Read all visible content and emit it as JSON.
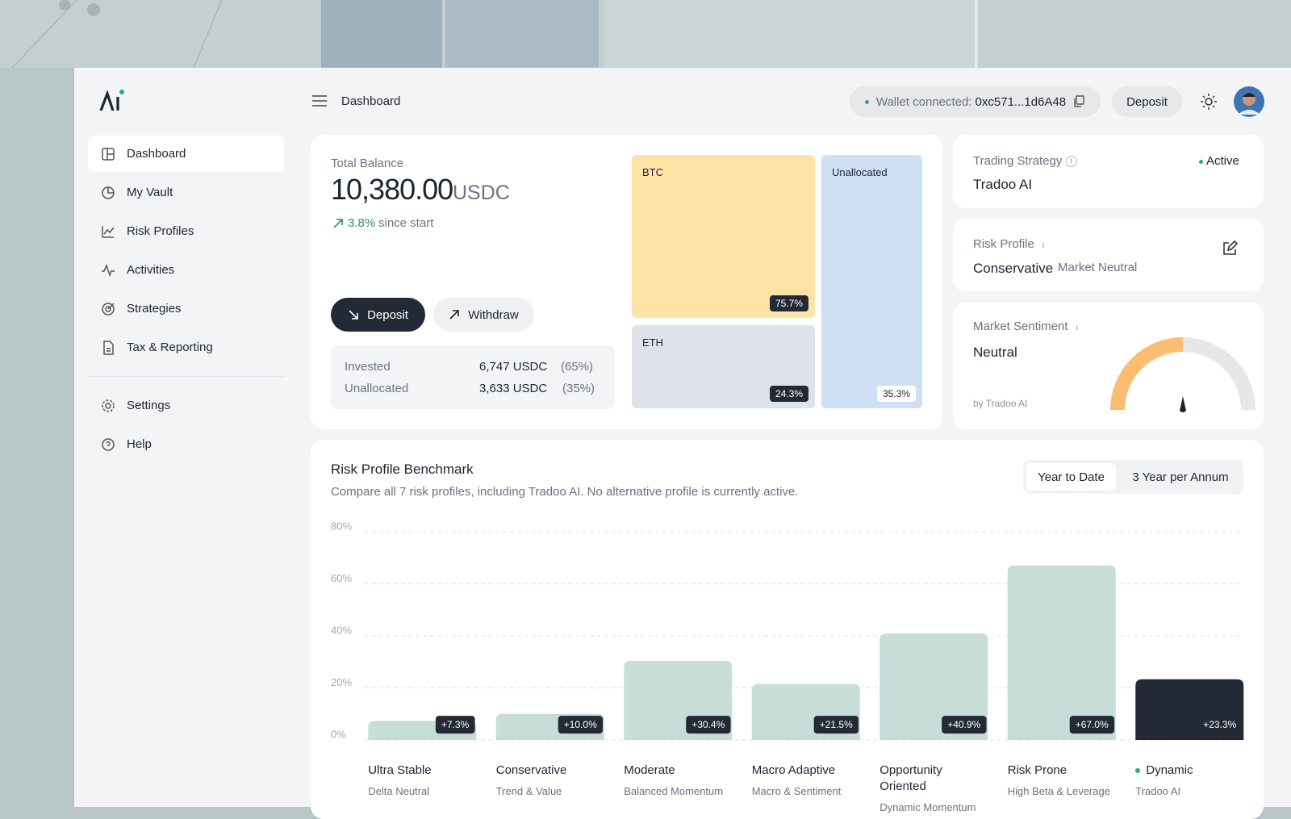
{
  "sidebar": {
    "nav": [
      "Dashboard",
      "My Vault",
      "Risk Profiles",
      "Activities",
      "Strategies",
      "Tax & Reporting"
    ],
    "secondary": [
      "Settings",
      "Help"
    ]
  },
  "topbar": {
    "title": "Dashboard",
    "wallet_label": "Wallet connected:",
    "wallet_address": "0xc571...1d6A48",
    "deposit": "Deposit"
  },
  "balance": {
    "label": "Total Balance",
    "amount": "10,380.00",
    "unit": "USDC",
    "change": "3.8%",
    "change_suffix": "since start",
    "deposit": "Deposit",
    "withdraw": "Withdraw",
    "rows": [
      {
        "label": "Invested",
        "amount": "6,747 USDC",
        "share": "(65%)"
      },
      {
        "label": "Unallocated",
        "amount": "3,633 USDC",
        "share": "(35%)"
      }
    ]
  },
  "allocation": {
    "tiles": [
      {
        "label": "BTC",
        "share": "75.7%"
      },
      {
        "label": "ETH",
        "share": "24.3%"
      },
      {
        "label": "Unallocated",
        "share": "35.3%"
      }
    ]
  },
  "cards": {
    "strategy": {
      "label": "Trading Strategy",
      "status": "Active",
      "value": "Tradoo AI"
    },
    "risk": {
      "label": "Risk Profile",
      "value": "Conservative",
      "detail": "Market Neutral"
    },
    "sentiment": {
      "label": "Market Sentiment",
      "value": "Neutral",
      "source": "by Tradoo AI"
    }
  },
  "chart_data": {
    "type": "bar",
    "title": "Risk Profile Benchmark",
    "subtitle": "Compare all 7 risk profiles, including Tradoo AI. No alternative profile is currently active.",
    "periods": [
      "Year to Date",
      "3 Year per Annum"
    ],
    "categories": [
      "Ultra Stable",
      "Conservative",
      "Moderate",
      "Macro Adaptive",
      "Opportunity Oriented",
      "Risk Prone",
      "Dynamic"
    ],
    "sublabels": [
      "Delta Neutral",
      "Trend & Value",
      "Balanced Momentum",
      "Macro & Sentiment",
      "Dynamic Momentum",
      "High Beta & Leverage",
      "Tradoo AI"
    ],
    "values": [
      7.3,
      10.0,
      30.4,
      21.5,
      40.9,
      67.0,
      23.3
    ],
    "value_labels": [
      "+7.3%",
      "+10.0%",
      "+30.4%",
      "+21.5%",
      "+40.9%",
      "+67.0%",
      "+23.3%"
    ],
    "colors": [
      "#c6ddd8",
      "#c6ddd8",
      "#c6ddd8",
      "#c6ddd8",
      "#c6ddd8",
      "#c6ddd8",
      "#242a35"
    ],
    "highlight": 6,
    "ylim": [
      0,
      80
    ],
    "yticks": [
      {
        "value": 0,
        "label": "0%"
      },
      {
        "value": 20,
        "label": "20%"
      },
      {
        "value": 40,
        "label": "40%"
      },
      {
        "value": 60,
        "label": "60%"
      },
      {
        "value": 80,
        "label": "80%"
      }
    ],
    "grid": true
  }
}
